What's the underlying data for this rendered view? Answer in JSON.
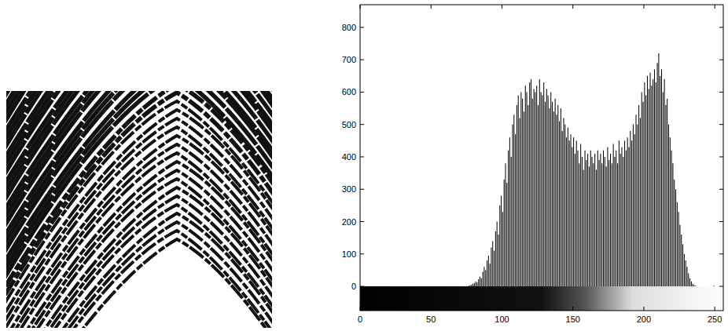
{
  "chart_data": {
    "type": "histogram",
    "color": "#000000",
    "xlim": [
      0,
      256
    ],
    "ylim": [
      -75,
      870
    ],
    "xticks": [
      0,
      50,
      100,
      150,
      200,
      250
    ],
    "yticks": [
      0,
      100,
      200,
      300,
      400,
      500,
      600,
      700,
      800
    ],
    "bins": [
      0,
      1,
      2,
      3,
      4,
      5,
      6,
      7,
      8,
      9,
      10,
      11,
      12,
      13,
      14,
      15,
      16,
      17,
      18,
      19,
      20,
      21,
      22,
      23,
      24,
      25,
      26,
      27,
      28,
      29,
      30,
      31,
      32,
      33,
      34,
      35,
      36,
      37,
      38,
      39,
      40,
      41,
      42,
      43,
      44,
      45,
      46,
      47,
      48,
      49,
      50,
      51,
      52,
      53,
      54,
      55,
      56,
      57,
      58,
      59,
      60,
      61,
      62,
      63,
      64,
      65,
      66,
      67,
      68,
      69,
      70,
      71,
      72,
      73,
      74,
      75,
      76,
      77,
      78,
      79,
      80,
      81,
      82,
      83,
      84,
      85,
      86,
      87,
      88,
      89,
      90,
      91,
      92,
      93,
      94,
      95,
      96,
      97,
      98,
      99,
      100,
      101,
      102,
      103,
      104,
      105,
      106,
      107,
      108,
      109,
      110,
      111,
      112,
      113,
      114,
      115,
      116,
      117,
      118,
      119,
      120,
      121,
      122,
      123,
      124,
      125,
      126,
      127,
      128,
      129,
      130,
      131,
      132,
      133,
      134,
      135,
      136,
      137,
      138,
      139,
      140,
      141,
      142,
      143,
      144,
      145,
      146,
      147,
      148,
      149,
      150,
      151,
      152,
      153,
      154,
      155,
      156,
      157,
      158,
      159,
      160,
      161,
      162,
      163,
      164,
      165,
      166,
      167,
      168,
      169,
      170,
      171,
      172,
      173,
      174,
      175,
      176,
      177,
      178,
      179,
      180,
      181,
      182,
      183,
      184,
      185,
      186,
      187,
      188,
      189,
      190,
      191,
      192,
      193,
      194,
      195,
      196,
      197,
      198,
      199,
      200,
      201,
      202,
      203,
      204,
      205,
      206,
      207,
      208,
      209,
      210,
      211,
      212,
      213,
      214,
      215,
      216,
      217,
      218,
      219,
      220,
      221,
      222,
      223,
      224,
      225,
      226,
      227,
      228,
      229,
      230,
      231,
      232,
      233,
      234,
      235,
      236,
      237,
      238,
      239,
      240,
      241,
      242,
      243,
      244,
      245,
      246,
      247,
      248,
      249,
      250,
      251,
      252,
      253,
      254,
      255,
      256
    ],
    "values": [
      0,
      0,
      0,
      0,
      0,
      0,
      0,
      0,
      0,
      0,
      0,
      0,
      0,
      0,
      0,
      0,
      0,
      0,
      0,
      0,
      0,
      0,
      0,
      0,
      0,
      0,
      0,
      0,
      0,
      0,
      0,
      0,
      0,
      0,
      0,
      0,
      0,
      0,
      0,
      0,
      0,
      0,
      0,
      0,
      0,
      0,
      0,
      0,
      0,
      0,
      0,
      0,
      0,
      0,
      0,
      0,
      0,
      0,
      0,
      0,
      0,
      0,
      0,
      0,
      0,
      0,
      0,
      0,
      0,
      0,
      0,
      0,
      0,
      0,
      0,
      0,
      2,
      3,
      5,
      8,
      10,
      15,
      12,
      22,
      30,
      25,
      45,
      60,
      50,
      80,
      95,
      70,
      120,
      140,
      110,
      170,
      200,
      160,
      250,
      280,
      230,
      330,
      380,
      320,
      420,
      460,
      400,
      500,
      530,
      470,
      560,
      590,
      520,
      600,
      580,
      540,
      620,
      600,
      560,
      630,
      640,
      580,
      610,
      600,
      620,
      560,
      640,
      600,
      590,
      630,
      570,
      610,
      590,
      550,
      600,
      570,
      540,
      580,
      530,
      560,
      510,
      550,
      480,
      520,
      500,
      460,
      490,
      450,
      470,
      430,
      460,
      410,
      450,
      420,
      380,
      440,
      400,
      360,
      420,
      390,
      410,
      370,
      420,
      400,
      380,
      410,
      360,
      420,
      390,
      410,
      380,
      420,
      400,
      370,
      430,
      390,
      410,
      380,
      440,
      400,
      420,
      380,
      450,
      410,
      430,
      400,
      450,
      420,
      460,
      430,
      480,
      450,
      500,
      470,
      530,
      500,
      560,
      520,
      600,
      570,
      630,
      590,
      650,
      610,
      660,
      620,
      640,
      670,
      630,
      690,
      720,
      650,
      670,
      600,
      640,
      560,
      580,
      500,
      460,
      420,
      380,
      330,
      300,
      260,
      230,
      190,
      160,
      130,
      100,
      80,
      60,
      40,
      25,
      15,
      8,
      4,
      2,
      0,
      0,
      0,
      0,
      0,
      0,
      0,
      0,
      0,
      0,
      0,
      0,
      2,
      0,
      0,
      0,
      0,
      0,
      0
    ]
  }
}
